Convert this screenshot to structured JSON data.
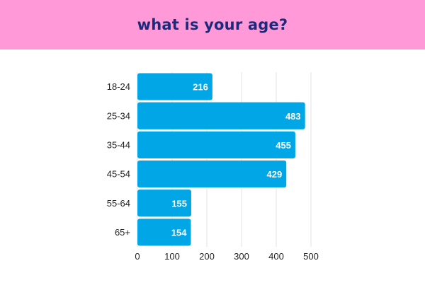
{
  "header": {
    "title": "what is your age?",
    "background": "#ff99d8",
    "text_color": "#1b2a7a"
  },
  "chart_data": {
    "type": "bar",
    "orientation": "horizontal",
    "title": "what is your age?",
    "categories": [
      "18-24",
      "25-34",
      "35-44",
      "45-54",
      "55-64",
      "65+"
    ],
    "values": [
      216,
      483,
      455,
      429,
      155,
      154
    ],
    "xlim": [
      0,
      500
    ],
    "x_ticks": [
      0,
      100,
      200,
      300,
      400,
      500
    ],
    "xlabel": "",
    "ylabel": "",
    "grid": "vertical",
    "legend": "none",
    "bar_color": "#00a6e6",
    "label_color": "#ffffff",
    "grid_color": "#e3e3e3"
  }
}
